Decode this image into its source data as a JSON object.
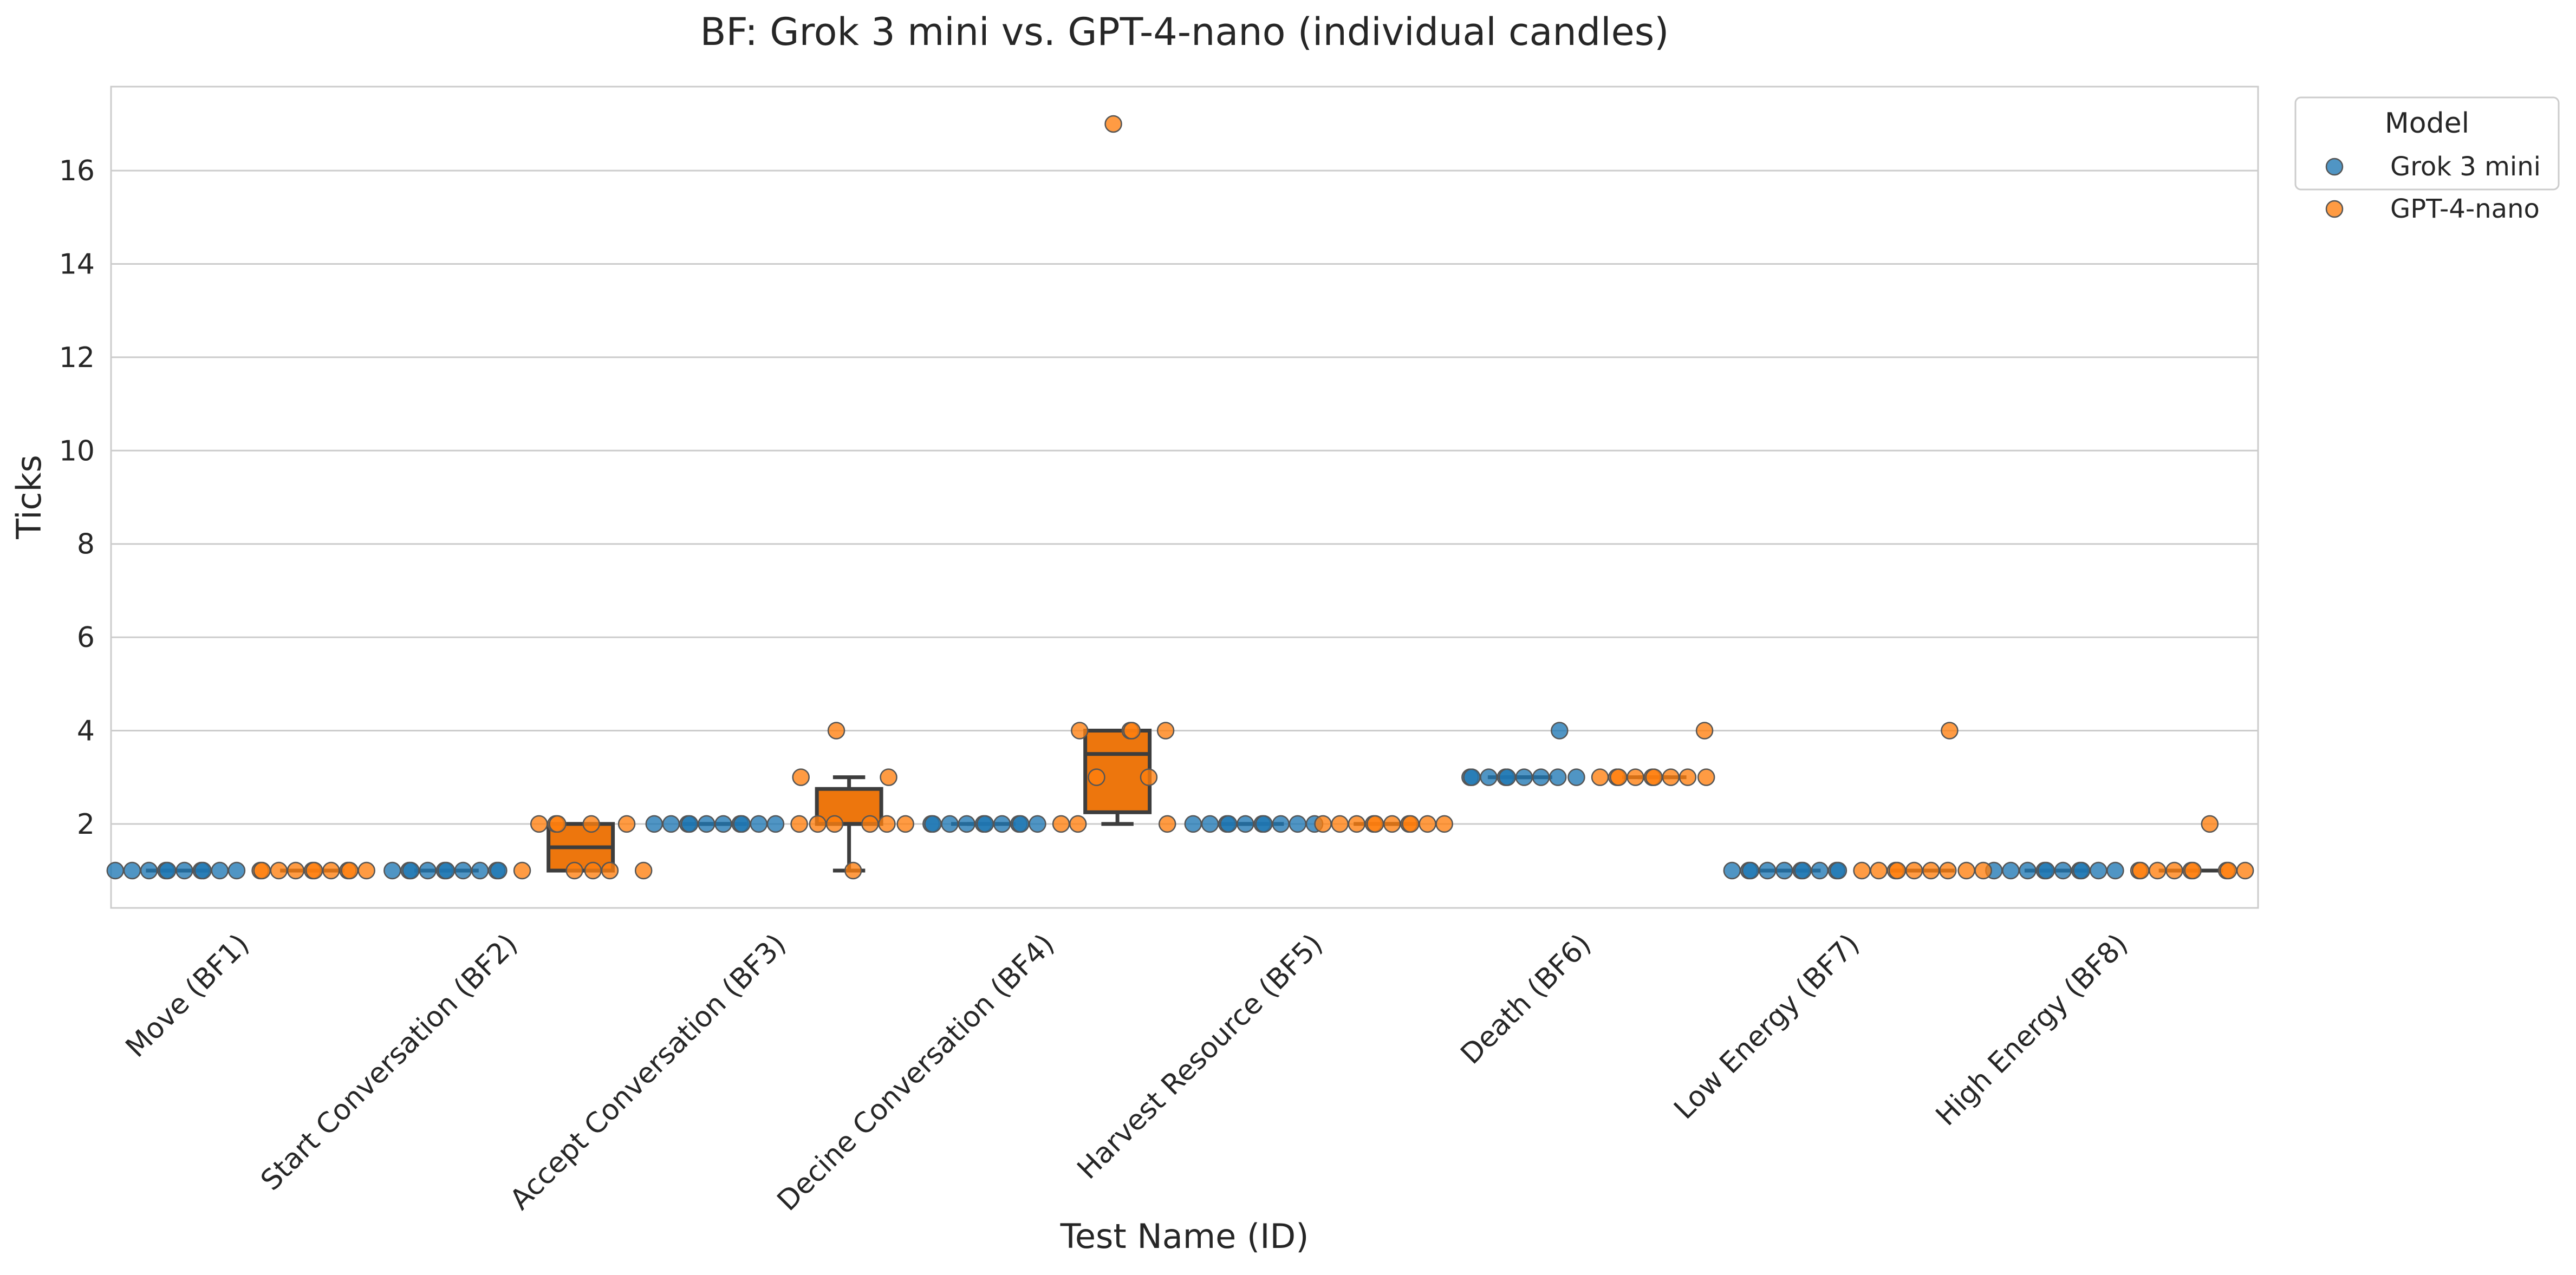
{
  "chart_data": {
    "type": "box",
    "title": "BF: Grok 3 mini vs. GPT-4-nano (individual candles)",
    "xlabel": "Test Name (ID)",
    "ylabel": "Ticks",
    "ylim": [
      0.2,
      17.8
    ],
    "yticks": [
      2,
      4,
      6,
      8,
      10,
      12,
      14,
      16
    ],
    "grid": "horizontal",
    "legend_position": "outside-top-right",
    "legend_title": "Model",
    "categories": [
      "Move (BF1)",
      "Start Conversation (BF2)",
      "Accept Conversation (BF3)",
      "Decine Conversation (BF4)",
      "Harvest Resource (BF5)",
      "Death (BF6)",
      "Low Energy (BF7)",
      "High Energy (BF8)"
    ],
    "series": [
      {
        "name": "Grok 3 mini",
        "color": "#1f77b4",
        "boxes": [
          {
            "q1": 1,
            "median": 1,
            "q3": 1,
            "whisker_low": 1,
            "whisker_high": 1
          },
          {
            "q1": 1,
            "median": 1,
            "q3": 1,
            "whisker_low": 1,
            "whisker_high": 1
          },
          {
            "q1": 2,
            "median": 2,
            "q3": 2,
            "whisker_low": 2,
            "whisker_high": 2
          },
          {
            "q1": 2,
            "median": 2,
            "q3": 2,
            "whisker_low": 2,
            "whisker_high": 2
          },
          {
            "q1": 2,
            "median": 2,
            "q3": 2,
            "whisker_low": 2,
            "whisker_high": 2
          },
          {
            "q1": 3,
            "median": 3,
            "q3": 3,
            "whisker_low": 3,
            "whisker_high": 3
          },
          {
            "q1": 1,
            "median": 1,
            "q3": 1,
            "whisker_low": 1,
            "whisker_high": 1
          },
          {
            "q1": 1,
            "median": 1,
            "q3": 1,
            "whisker_low": 1,
            "whisker_high": 1
          }
        ],
        "points": [
          [
            1,
            1,
            1,
            1,
            1,
            1,
            1,
            1,
            1,
            1
          ],
          [
            1,
            1,
            1,
            1,
            1,
            1,
            1,
            1,
            1,
            1
          ],
          [
            2,
            2,
            2,
            2,
            2,
            2,
            2,
            2,
            2,
            2
          ],
          [
            2,
            2,
            2,
            2,
            2,
            2,
            2,
            2,
            2,
            2
          ],
          [
            2,
            2,
            2,
            2,
            2,
            2,
            2,
            2,
            2,
            2
          ],
          [
            3,
            3,
            3,
            3,
            3,
            3,
            3,
            3,
            4,
            3
          ],
          [
            1,
            1,
            1,
            1,
            1,
            1,
            1,
            1,
            1,
            1
          ],
          [
            1,
            1,
            1,
            1,
            1,
            1,
            1,
            1,
            1,
            1
          ]
        ]
      },
      {
        "name": "GPT-4-nano",
        "color": "#ff7f0e",
        "boxes": [
          {
            "q1": 1,
            "median": 1,
            "q3": 1,
            "whisker_low": 1,
            "whisker_high": 1
          },
          {
            "q1": 1,
            "median": 1.5,
            "q3": 2,
            "whisker_low": 1,
            "whisker_high": 2
          },
          {
            "q1": 2,
            "median": 2,
            "q3": 2.75,
            "whisker_low": 1,
            "whisker_high": 3
          },
          {
            "q1": 2.25,
            "median": 3.5,
            "q3": 4,
            "whisker_low": 2,
            "whisker_high": 4
          },
          {
            "q1": 2,
            "median": 2,
            "q3": 2,
            "whisker_low": 2,
            "whisker_high": 2
          },
          {
            "q1": 3,
            "median": 3,
            "q3": 3,
            "whisker_low": 3,
            "whisker_high": 3
          },
          {
            "q1": 1,
            "median": 1,
            "q3": 1,
            "whisker_low": 1,
            "whisker_high": 1
          },
          {
            "q1": 1,
            "median": 1,
            "q3": 1,
            "whisker_low": 1,
            "whisker_high": 1
          }
        ],
        "points": [
          [
            1,
            1,
            1,
            1,
            1,
            1,
            1,
            1,
            1,
            1
          ],
          [
            1,
            2,
            2,
            2,
            1,
            2,
            1,
            1,
            2,
            1
          ],
          [
            2,
            3,
            2,
            2,
            4,
            1,
            2,
            2,
            3,
            2
          ],
          [
            2,
            2,
            4,
            3,
            17,
            4,
            4,
            3,
            4,
            2
          ],
          [
            2,
            2,
            2,
            2,
            2,
            2,
            2,
            2,
            2,
            2
          ],
          [
            3,
            3,
            3,
            3,
            3,
            3,
            3,
            3,
            4,
            3
          ],
          [
            1,
            1,
            1,
            1,
            1,
            1,
            1,
            4,
            1,
            1
          ],
          [
            1,
            1,
            1,
            1,
            1,
            1,
            2,
            1,
            1,
            1
          ]
        ]
      }
    ]
  }
}
